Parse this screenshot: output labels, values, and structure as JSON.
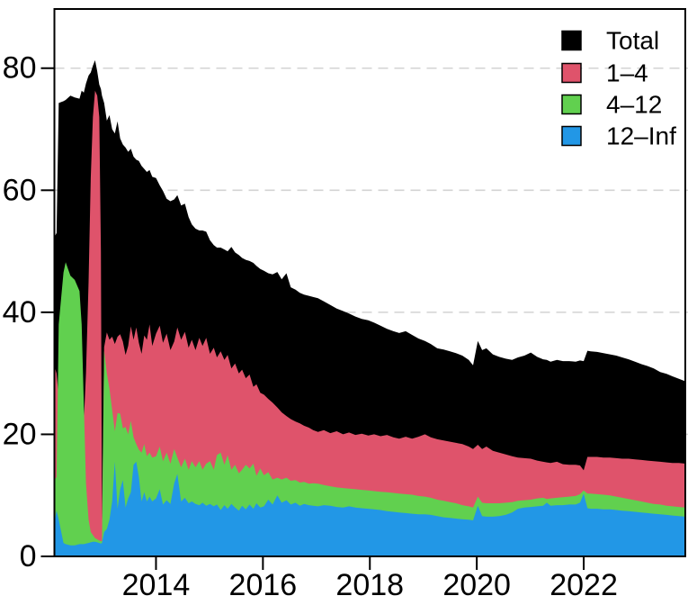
{
  "figure": {
    "background": "#ffffff"
  },
  "chart_data": {
    "type": "area",
    "title": "",
    "xlabel": "",
    "ylabel": "",
    "xlim": [
      2012.1,
      2023.9
    ],
    "ylim": [
      0,
      89.7
    ],
    "x_ticks": [
      2014,
      2016,
      2018,
      2020,
      2022
    ],
    "y_ticks": [
      0,
      20,
      40,
      60,
      80
    ],
    "grid": "horizontal-dashed",
    "legend_position": "topright",
    "x": [
      2012.1,
      2012.14,
      2012.18,
      2012.27,
      2012.31,
      2012.4,
      2012.48,
      2012.57,
      2012.61,
      2012.65,
      2012.69,
      2012.74,
      2012.78,
      2012.82,
      2012.86,
      2012.9,
      2012.94,
      2012.97,
      2012.99,
      2013.03,
      2013.08,
      2013.13,
      2013.18,
      2013.23,
      2013.28,
      2013.33,
      2013.38,
      2013.43,
      2013.48,
      2013.53,
      2013.58,
      2013.63,
      2013.68,
      2013.73,
      2013.78,
      2013.83,
      2013.88,
      2013.93,
      2014.0,
      2014.07,
      2014.13,
      2014.2,
      2014.27,
      2014.34,
      2014.4,
      2014.47,
      2014.54,
      2014.61,
      2014.67,
      2014.74,
      2014.81,
      2014.87,
      2014.94,
      2015.01,
      2015.08,
      2015.14,
      2015.21,
      2015.28,
      2015.34,
      2015.41,
      2015.48,
      2015.55,
      2015.61,
      2015.68,
      2015.75,
      2015.82,
      2015.88,
      2015.95,
      2016.02,
      2016.1,
      2016.18,
      2016.27,
      2016.35,
      2016.44,
      2016.52,
      2016.61,
      2016.69,
      2016.77,
      2016.86,
      2016.94,
      2017.03,
      2017.14,
      2017.26,
      2017.38,
      2017.5,
      2017.61,
      2017.73,
      2017.85,
      2017.97,
      2018.08,
      2018.2,
      2018.32,
      2018.44,
      2018.55,
      2018.67,
      2018.79,
      2018.91,
      2019.03,
      2019.14,
      2019.26,
      2019.38,
      2019.5,
      2019.61,
      2019.73,
      2019.85,
      2019.93,
      2020.02,
      2020.1,
      2020.18,
      2020.3,
      2020.42,
      2020.54,
      2020.66,
      2020.77,
      2020.89,
      2021.01,
      2021.13,
      2021.24,
      2021.31,
      2021.38,
      2021.5,
      2021.61,
      2021.73,
      2021.85,
      2021.93,
      2022.0,
      2022.07,
      2022.13,
      2022.25,
      2022.37,
      2022.49,
      2022.61,
      2022.72,
      2022.84,
      2022.96,
      2023.08,
      2023.19,
      2023.31,
      2023.43,
      2023.55,
      2023.66,
      2023.78,
      2023.9
    ],
    "series": [
      {
        "name": "Total",
        "color": "#000000",
        "values": [
          52.3,
          53.0,
          74.3,
          74.6,
          74.8,
          75.5,
          75.2,
          75.0,
          76.3,
          76.0,
          77.5,
          78.8,
          79.3,
          80.4,
          81.3,
          79.5,
          77.3,
          76.6,
          75.5,
          74.3,
          71.4,
          72.3,
          70.0,
          69.3,
          71.3,
          68.5,
          67.5,
          67.0,
          66.3,
          66.8,
          65.5,
          65.0,
          64.8,
          64.0,
          63.5,
          63.0,
          63.3,
          62.2,
          62.0,
          60.8,
          59.9,
          58.6,
          58.2,
          58.5,
          59.2,
          57.5,
          57.8,
          55.6,
          54.4,
          53.7,
          53.4,
          53.4,
          53.2,
          51.8,
          51.0,
          50.6,
          50.6,
          50.3,
          50.0,
          50.7,
          49.8,
          49.4,
          48.9,
          48.6,
          48.4,
          48.1,
          47.6,
          47.1,
          46.8,
          46.4,
          46.2,
          46.6,
          45.4,
          46.4,
          44.1,
          43.7,
          43.2,
          42.9,
          42.7,
          42.5,
          42.3,
          41.8,
          41.2,
          40.6,
          40.2,
          39.8,
          39.3,
          38.9,
          38.7,
          38.3,
          37.8,
          37.3,
          36.9,
          36.6,
          36.9,
          36.3,
          35.7,
          35.3,
          34.8,
          34.1,
          33.9,
          33.6,
          33.3,
          32.9,
          32.2,
          31.3,
          35.3,
          33.8,
          34.1,
          33.1,
          32.7,
          32.4,
          32.2,
          32.6,
          32.9,
          33.4,
          32.7,
          32.3,
          32.2,
          31.9,
          32.2,
          32.0,
          32.0,
          31.9,
          32.1,
          32.0,
          33.7,
          33.6,
          33.5,
          33.3,
          33.1,
          32.9,
          32.6,
          32.3,
          31.9,
          31.5,
          31.2,
          30.8,
          30.2,
          29.9,
          29.5,
          29.1,
          28.7
        ]
      },
      {
        "name": "1–4",
        "color": "#DF536B",
        "values": [
          31.2,
          30.0,
          26.0,
          22.0,
          20.0,
          18.0,
          17.0,
          16.0,
          18.0,
          22.0,
          30.0,
          45.0,
          62.0,
          72.0,
          76.3,
          75.5,
          72.0,
          50.0,
          6.0,
          34.3,
          36.7,
          35.5,
          36.0,
          34.8,
          36.0,
          36.4,
          35.2,
          33.0,
          34.5,
          37.7,
          35.5,
          37.5,
          35.0,
          33.2,
          36.2,
          35.5,
          38.0,
          34.5,
          36.5,
          37.8,
          35.0,
          36.5,
          33.8,
          35.2,
          37.5,
          35.5,
          36.8,
          34.2,
          35.5,
          33.8,
          35.8,
          34.5,
          35.8,
          33.2,
          34.2,
          32.6,
          33.6,
          32.2,
          33.0,
          30.8,
          31.6,
          30.0,
          30.6,
          29.2,
          29.8,
          27.8,
          28.2,
          26.8,
          26.5,
          25.8,
          25.2,
          24.4,
          23.6,
          23.0,
          22.5,
          22.1,
          21.8,
          21.4,
          21.1,
          20.7,
          20.4,
          20.7,
          20.2,
          20.5,
          20.0,
          20.3,
          19.9,
          20.1,
          19.8,
          20.0,
          19.7,
          19.9,
          19.5,
          19.3,
          19.6,
          19.3,
          19.6,
          20.0,
          19.5,
          19.2,
          19.0,
          18.8,
          18.6,
          18.4,
          18.0,
          17.6,
          18.3,
          17.6,
          18.0,
          17.3,
          17.0,
          16.7,
          16.4,
          16.2,
          16.1,
          16.0,
          15.7,
          15.5,
          15.4,
          15.3,
          15.5,
          15.1,
          15.0,
          15.0,
          14.9,
          14.1,
          16.3,
          16.3,
          16.3,
          16.2,
          16.2,
          16.1,
          16.0,
          16.0,
          15.9,
          15.8,
          15.7,
          15.6,
          15.5,
          15.4,
          15.3,
          15.3,
          15.2
        ]
      },
      {
        "name": "4–12",
        "color": "#61D04F",
        "values": [
          12.5,
          13.0,
          38.0,
          46.5,
          48.2,
          46.0,
          45.3,
          43.5,
          38.0,
          25.0,
          12.0,
          6.0,
          4.0,
          3.5,
          3.0,
          2.8,
          2.6,
          2.5,
          2.5,
          33.7,
          30.0,
          27.5,
          24.0,
          20.5,
          23.5,
          23.4,
          21.0,
          21.2,
          20.0,
          22.2,
          19.5,
          18.4,
          17.5,
          17.0,
          18.4,
          16.4,
          17.0,
          16.2,
          16.4,
          18.0,
          15.6,
          17.0,
          15.2,
          17.6,
          16.2,
          14.6,
          16.0,
          14.2,
          15.6,
          14.6,
          15.6,
          14.2,
          15.2,
          15.6,
          14.2,
          16.6,
          17.0,
          15.0,
          16.6,
          14.2,
          15.0,
          13.6,
          14.2,
          15.0,
          14.4,
          15.2,
          13.2,
          14.4,
          13.3,
          13.8,
          12.6,
          12.9,
          12.6,
          12.9,
          12.4,
          12.5,
          12.1,
          12.2,
          11.9,
          12.0,
          11.9,
          11.7,
          11.5,
          11.3,
          11.2,
          11.1,
          11.0,
          10.9,
          10.8,
          10.7,
          10.6,
          10.5,
          10.4,
          10.3,
          10.2,
          10.1,
          9.9,
          9.8,
          9.6,
          9.3,
          9.1,
          8.9,
          8.7,
          8.4,
          8.2,
          8.0,
          9.8,
          8.8,
          8.7,
          8.7,
          8.7,
          8.8,
          8.9,
          9.1,
          9.2,
          9.3,
          9.5,
          9.6,
          9.4,
          9.5,
          9.6,
          9.7,
          9.8,
          9.9,
          10.2,
          10.8,
          10.3,
          10.3,
          10.2,
          10.1,
          10.0,
          9.8,
          9.6,
          9.4,
          9.2,
          9.0,
          8.8,
          8.6,
          8.5,
          8.3,
          8.2,
          8.1,
          8.0
        ]
      },
      {
        "name": "12–Inf",
        "color": "#2297E6",
        "values": [
          5.5,
          7.5,
          6.0,
          2.2,
          2.0,
          1.8,
          1.8,
          2.0,
          2.0,
          2.0,
          2.1,
          2.2,
          2.3,
          2.4,
          2.4,
          2.3,
          2.2,
          2.1,
          2.2,
          4.0,
          4.5,
          6.0,
          9.0,
          15.5,
          7.8,
          11.0,
          12.5,
          8.0,
          9.5,
          10.5,
          15.0,
          15.5,
          13.0,
          9.0,
          10.5,
          9.0,
          9.8,
          9.0,
          9.5,
          11.0,
          8.5,
          9.2,
          8.6,
          12.0,
          13.5,
          9.0,
          9.6,
          8.7,
          9.0,
          8.6,
          8.4,
          8.8,
          8.3,
          8.6,
          8.2,
          8.5,
          7.6,
          8.4,
          7.8,
          8.6,
          8.0,
          7.5,
          8.3,
          7.7,
          8.5,
          7.8,
          8.7,
          8.0,
          8.2,
          9.3,
          8.5,
          10.0,
          8.8,
          9.2,
          8.5,
          8.8,
          8.3,
          8.6,
          8.4,
          8.3,
          8.2,
          8.4,
          8.3,
          8.1,
          8.0,
          8.2,
          8.0,
          7.9,
          7.8,
          7.7,
          7.6,
          7.4,
          7.3,
          7.2,
          7.1,
          7.0,
          6.9,
          6.9,
          6.8,
          6.6,
          6.4,
          6.3,
          6.2,
          6.1,
          6.0,
          5.9,
          8.3,
          6.6,
          6.5,
          6.5,
          6.6,
          6.8,
          7.2,
          7.8,
          8.0,
          8.1,
          8.2,
          8.3,
          8.8,
          8.3,
          8.4,
          8.4,
          8.5,
          8.5,
          8.8,
          10.3,
          7.9,
          7.8,
          7.8,
          7.7,
          7.7,
          7.6,
          7.5,
          7.4,
          7.3,
          7.2,
          7.1,
          7.0,
          6.9,
          6.8,
          6.7,
          6.6,
          6.5
        ]
      }
    ]
  }
}
